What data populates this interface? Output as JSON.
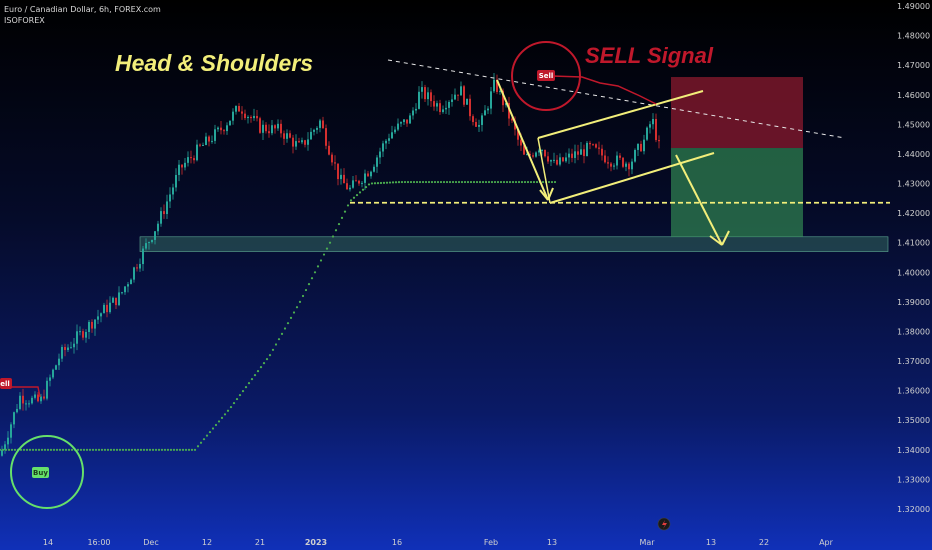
{
  "header": {
    "symbol_line": "Euro / Canadian Dollar, 6h, FOREX.com",
    "author": "ISOFOREX"
  },
  "annotations": {
    "pattern_title": "Head & Shoulders",
    "signal_title": "SELL Signal",
    "sell_tag": "Sell",
    "buy_tag": "Buy",
    "left_tag": "ell",
    "title_color": "#f2ee7a",
    "signal_color": "#c0182b"
  },
  "colors": {
    "up_candle": "#26a69a",
    "down_candle": "#d32f2f",
    "trend_dots": "#4caf50",
    "pattern_lines": "#f2ee7a",
    "sell_zone": "#8b1a2e",
    "target_zone": "#2e7d4f"
  },
  "chart_data": {
    "type": "candlestick",
    "title": "",
    "xlabel": "",
    "ylabel": "",
    "ylim": [
      1.315,
      1.49
    ],
    "y_ticks": [
      "1.49000",
      "1.48000",
      "1.47000",
      "1.46000",
      "1.45000",
      "1.44000",
      "1.43000",
      "1.42000",
      "1.41000",
      "1.40000",
      "1.39000",
      "1.38000",
      "1.37000",
      "1.36000",
      "1.35000",
      "1.34000",
      "1.33000",
      "1.32000"
    ],
    "x_ticks": [
      "14",
      "16:00",
      "Dec",
      "12",
      "21",
      "2023",
      "16",
      "Feb",
      "13",
      "Mar",
      "13",
      "22",
      "Apr"
    ],
    "price_path": [
      [
        0,
        1.338
      ],
      [
        20,
        1.358
      ],
      [
        40,
        1.356
      ],
      [
        60,
        1.372
      ],
      [
        80,
        1.379
      ],
      [
        100,
        1.386
      ],
      [
        120,
        1.392
      ],
      [
        140,
        1.405
      ],
      [
        160,
        1.418
      ],
      [
        180,
        1.435
      ],
      [
        200,
        1.442
      ],
      [
        220,
        1.448
      ],
      [
        240,
        1.456
      ],
      [
        260,
        1.449
      ],
      [
        280,
        1.448
      ],
      [
        300,
        1.442
      ],
      [
        320,
        1.451
      ],
      [
        340,
        1.431
      ],
      [
        350,
        1.428
      ],
      [
        370,
        1.435
      ],
      [
        390,
        1.447
      ],
      [
        410,
        1.452
      ],
      [
        420,
        1.461
      ],
      [
        440,
        1.456
      ],
      [
        460,
        1.462
      ],
      [
        470,
        1.454
      ],
      [
        480,
        1.449
      ],
      [
        495,
        1.464
      ],
      [
        510,
        1.452
      ],
      [
        525,
        1.438
      ],
      [
        540,
        1.443
      ],
      [
        555,
        1.436
      ],
      [
        570,
        1.439
      ],
      [
        590,
        1.442
      ],
      [
        610,
        1.438
      ],
      [
        630,
        1.437
      ],
      [
        645,
        1.445
      ],
      [
        652,
        1.452
      ],
      [
        660,
        1.441
      ]
    ],
    "trend_stop": [
      [
        0,
        1.34
      ],
      [
        195,
        1.34
      ],
      [
        230,
        1.354
      ],
      [
        270,
        1.372
      ],
      [
        300,
        1.39
      ],
      [
        330,
        1.41
      ],
      [
        350,
        1.424
      ],
      [
        370,
        1.43
      ],
      [
        400,
        1.4305
      ],
      [
        540,
        1.4305
      ],
      [
        555,
        1.4305
      ]
    ],
    "levels": {
      "neckline": 1.4235,
      "support_zone": [
        1.407,
        1.412
      ],
      "sell_zone": [
        1.442,
        1.466
      ],
      "target_zone": [
        1.412,
        1.442
      ]
    },
    "legend": "none",
    "grid": false
  }
}
